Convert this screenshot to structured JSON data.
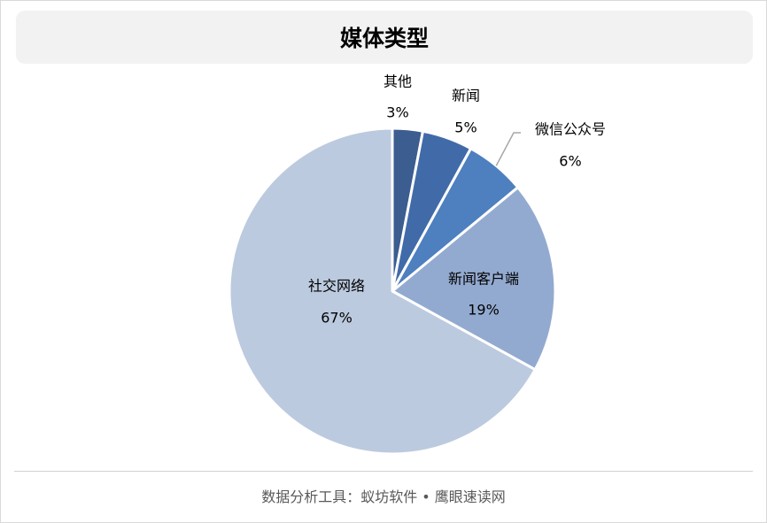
{
  "title": "媒体类型",
  "footer": "数据分析工具：蚁坊软件 • 鹰眼速读网",
  "chart_data": {
    "type": "pie",
    "title": "媒体类型",
    "start_angle_deg": 0,
    "direction": "clockwise",
    "slices": [
      {
        "label": "其他",
        "value": 3,
        "display": "3%",
        "color": "#3b5d8f"
      },
      {
        "label": "新闻",
        "value": 5,
        "display": "5%",
        "color": "#416ba8"
      },
      {
        "label": "微信公众号",
        "value": 6,
        "display": "6%",
        "color": "#4e7fbf"
      },
      {
        "label": "新闻客户端",
        "value": 19,
        "display": "19%",
        "color": "#93aad0"
      },
      {
        "label": "社交网络",
        "value": 67,
        "display": "67%",
        "color": "#bccadf"
      }
    ]
  }
}
